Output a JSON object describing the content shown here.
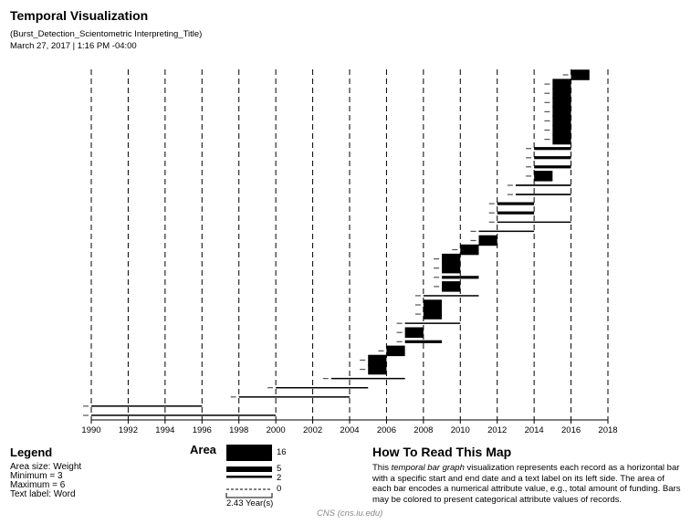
{
  "header": {
    "title": "Temporal Visualization",
    "subtitle": "(Burst_Detection_Scientometric Interpreting_Title)",
    "date": "March 27, 2017 | 1:16 PM -04:00"
  },
  "legend": {
    "title": "Legend",
    "lines": [
      "Area size: Weight",
      "Minimum = 3",
      "Maximum = 6",
      "Text label: Word"
    ]
  },
  "area_legend": {
    "title": "Area",
    "values": [
      "16",
      "5",
      "2",
      "0"
    ],
    "scale_label": "2.43 Year(s)"
  },
  "howto": {
    "title": "How To Read This Map",
    "text_pre": "This ",
    "text_em": "temporal bar graph",
    "text_post": " visualization represents each record as a horizontal bar with a specific start and end date and a text label on its left side. The area of each bar encodes a numerical attribute value, e.g., total amount of funding. Bars may be colored to present categorical attribute values of records."
  },
  "footer": "CNS (cns.iu.edu)",
  "chart_data": {
    "type": "bar",
    "orientation": "horizontal-timeline",
    "x_ticks": [
      "1990",
      "1992",
      "1994",
      "1996",
      "1998",
      "2000",
      "2002",
      "2004",
      "2006",
      "2008",
      "2010",
      "2012",
      "2014",
      "2016",
      "2018"
    ],
    "xlim": [
      1990,
      2018
    ],
    "gridlines": "dashed vertical",
    "bar_color": "#000000",
    "records": [
      {
        "start": 2016,
        "end": 2017,
        "area": 16
      },
      {
        "start": 2015,
        "end": 2016,
        "area": 16
      },
      {
        "start": 2015,
        "end": 2016,
        "area": 16
      },
      {
        "start": 2015,
        "end": 2016,
        "area": 16
      },
      {
        "start": 2015,
        "end": 2016,
        "area": 16
      },
      {
        "start": 2015,
        "end": 2016,
        "area": 16
      },
      {
        "start": 2015,
        "end": 2016,
        "area": 16
      },
      {
        "start": 2015,
        "end": 2016,
        "area": 16
      },
      {
        "start": 2014,
        "end": 2016,
        "area": 9
      },
      {
        "start": 2014,
        "end": 2016,
        "area": 9
      },
      {
        "start": 2014,
        "end": 2016,
        "area": 9
      },
      {
        "start": 2014,
        "end": 2015,
        "area": 16
      },
      {
        "start": 2013,
        "end": 2016,
        "area": 7
      },
      {
        "start": 2013,
        "end": 2016,
        "area": 7
      },
      {
        "start": 2012,
        "end": 2014,
        "area": 9
      },
      {
        "start": 2012,
        "end": 2014,
        "area": 9
      },
      {
        "start": 2012,
        "end": 2016,
        "area": 5
      },
      {
        "start": 2011,
        "end": 2014,
        "area": 6
      },
      {
        "start": 2011,
        "end": 2012,
        "area": 16
      },
      {
        "start": 2010,
        "end": 2011,
        "area": 16
      },
      {
        "start": 2009,
        "end": 2010,
        "area": 16
      },
      {
        "start": 2009,
        "end": 2010,
        "area": 16
      },
      {
        "start": 2009,
        "end": 2011,
        "area": 9
      },
      {
        "start": 2009,
        "end": 2010,
        "area": 16
      },
      {
        "start": 2008,
        "end": 2011,
        "area": 5
      },
      {
        "start": 2008,
        "end": 2009,
        "area": 16
      },
      {
        "start": 2008,
        "end": 2009,
        "area": 16
      },
      {
        "start": 2007,
        "end": 2010,
        "area": 6
      },
      {
        "start": 2007,
        "end": 2008,
        "area": 16
      },
      {
        "start": 2007,
        "end": 2009,
        "area": 9
      },
      {
        "start": 2006,
        "end": 2007,
        "area": 16
      },
      {
        "start": 2005,
        "end": 2006,
        "area": 16
      },
      {
        "start": 2005,
        "end": 2006,
        "area": 16
      },
      {
        "start": 2003,
        "end": 2007,
        "area": 5
      },
      {
        "start": 2000,
        "end": 2005,
        "area": 3
      },
      {
        "start": 1998,
        "end": 2004,
        "area": 2
      },
      {
        "start": 1990,
        "end": 1996,
        "area": 1
      },
      {
        "start": 1990,
        "end": 2000,
        "area": 1
      }
    ]
  }
}
